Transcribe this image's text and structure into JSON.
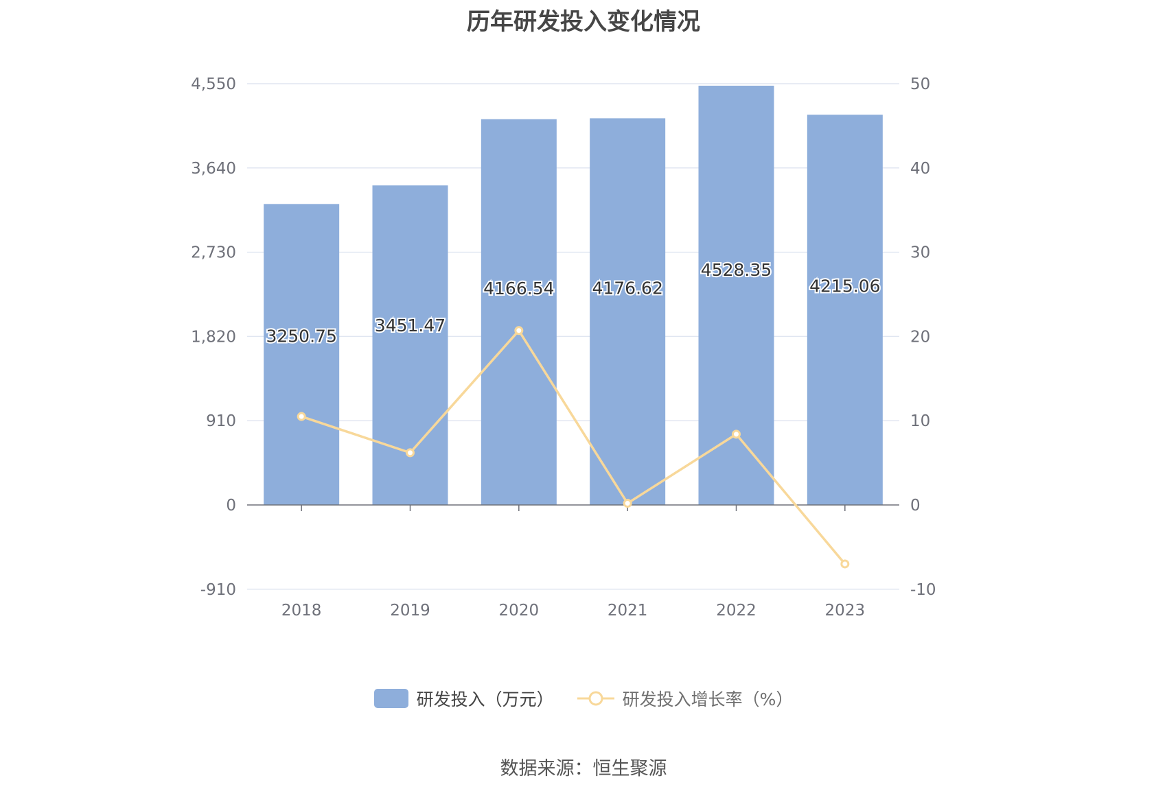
{
  "chart_data": {
    "type": "bar",
    "title": "历年研发投入变化情况",
    "categories": [
      "2018",
      "2019",
      "2020",
      "2021",
      "2022",
      "2023"
    ],
    "series": [
      {
        "name": "研发投入（万元）",
        "type": "bar",
        "axis": "left",
        "values": [
          3250.75,
          3451.47,
          4166.54,
          4176.62,
          4528.35,
          4215.06
        ],
        "labels": [
          "3250.75",
          "3451.47",
          "4166.54",
          "4176.62",
          "4528.35",
          "4215.06"
        ],
        "color": "#8eaedb"
      },
      {
        "name": "研发投入增长率（%）",
        "type": "line",
        "axis": "right",
        "values": [
          10.5,
          6.2,
          20.7,
          0.2,
          8.4,
          -7.0
        ],
        "color": "#f8d89a"
      }
    ],
    "y_left": {
      "range": [
        -910,
        4550
      ],
      "ticks": [
        -910,
        0,
        910,
        1820,
        2730,
        3640,
        4550
      ],
      "tick_labels": [
        "-910",
        "0",
        "910",
        "1,820",
        "2,730",
        "3,640",
        "4,550"
      ]
    },
    "y_right": {
      "range": [
        -10,
        50
      ],
      "ticks": [
        -10,
        0,
        10,
        20,
        30,
        40,
        50
      ],
      "tick_labels": [
        "-10",
        "0",
        "10",
        "20",
        "30",
        "40",
        "50"
      ]
    },
    "grid": true,
    "legend_position": "bottom-center"
  },
  "source_text": "数据来源：恒生聚源"
}
